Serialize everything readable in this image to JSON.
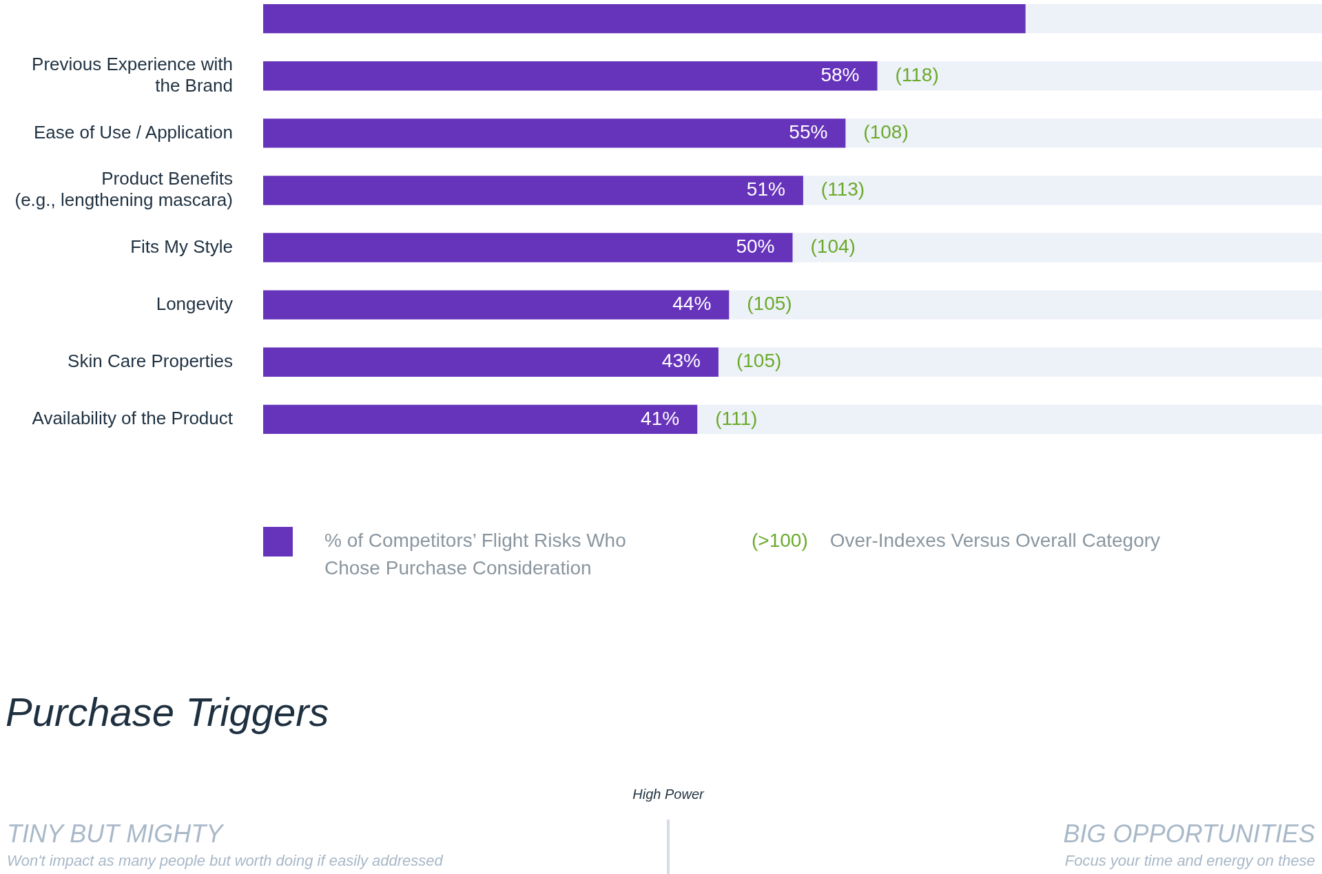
{
  "chart_data": {
    "type": "bar",
    "orientation": "horizontal",
    "legend": "bottom",
    "categories": [
      null,
      "Previous Experience with the Brand",
      "Ease of Use / Application",
      "Product Benefits (e.g., lengthening mascara)",
      "Fits My Style",
      "Longevity",
      "Skin Care Properties",
      "Availability of the Product"
    ],
    "series": [
      {
        "name": "% of Competitors’ Flight Risks Who Chose Purchase Consideration",
        "color": "#6633bb",
        "values": [
          72,
          58,
          55,
          51,
          50,
          44,
          43,
          41
        ],
        "value_labels": [
          null,
          "58%",
          "55%",
          "51%",
          "50%",
          "44%",
          "43%",
          "41%"
        ]
      }
    ],
    "xlim": [
      0,
      100
    ],
    "annotations": [
      {
        "text": "(118)",
        "x": 58,
        "y": "Previous Experience with the Brand"
      },
      {
        "text": "(108)",
        "x": 55,
        "y": "Ease of Use / Application"
      },
      {
        "text": "(113)",
        "x": 51,
        "y": "Product Benefits (e.g., lengthening mascara)"
      },
      {
        "text": "(104)",
        "x": 50,
        "y": "Fits My Style"
      },
      {
        "text": "(105)",
        "x": 44,
        "y": "Longevity"
      },
      {
        "text": "(105)",
        "x": 43,
        "y": "Skin Care Properties"
      },
      {
        "text": "(111)",
        "x": 41,
        "y": "Availability of the Product"
      },
      "(>100)",
      "Over-Indexes Versus Overall Category",
      "Purchase Triggers",
      "High Power",
      "TINY BUT MIGHTY",
      "Won't impact as many people but worth doing if easily addressed",
      "BIG OPPORTUNITIES",
      "Focus your time and energy on these"
    ]
  }
}
